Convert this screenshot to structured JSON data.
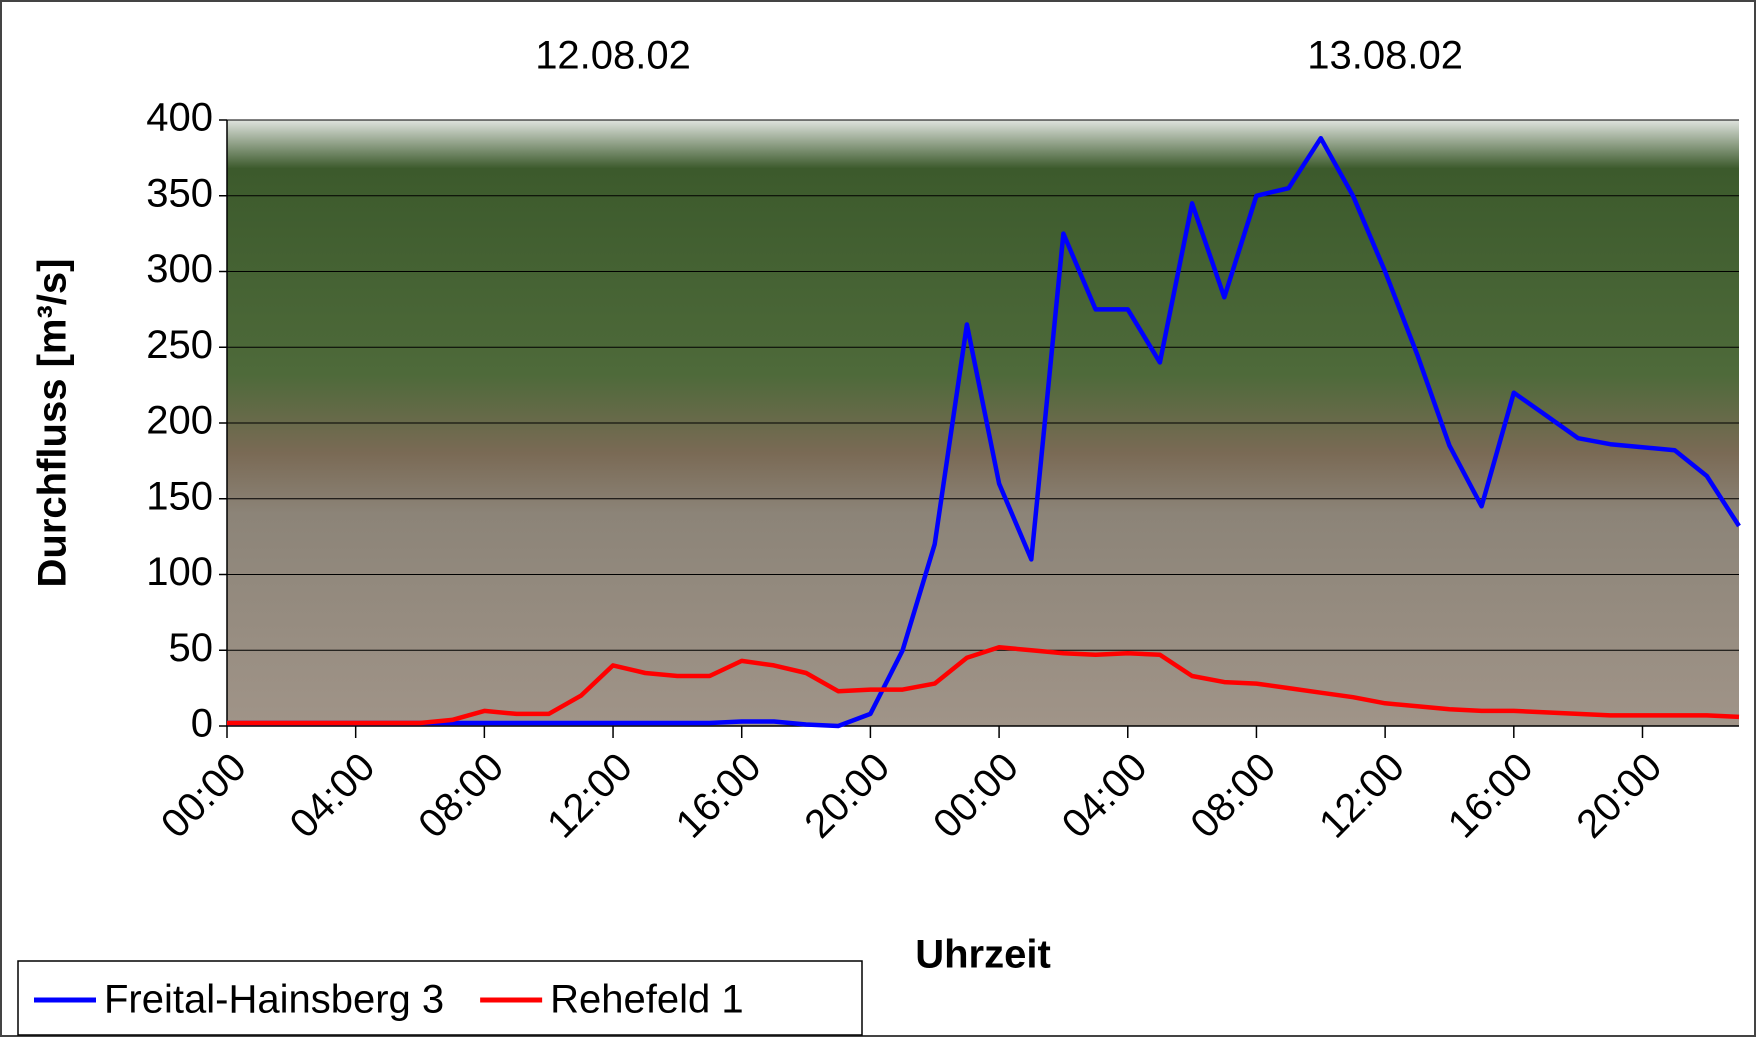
{
  "chart_data": {
    "type": "line",
    "annotations": [
      "12.08.02",
      "13.08.02"
    ],
    "x_label": "Uhrzeit",
    "y_label": "Durchfluss [m³/s]",
    "x": [
      0,
      1,
      2,
      3,
      4,
      5,
      6,
      7,
      8,
      9,
      10,
      11,
      12,
      13,
      14,
      15,
      16,
      17,
      18,
      19,
      20,
      21,
      22,
      23,
      24,
      25,
      26,
      27,
      28,
      29,
      30,
      31,
      32,
      33,
      34,
      35,
      36,
      37,
      38,
      39,
      40,
      41,
      42,
      43,
      44,
      45,
      46,
      47
    ],
    "series": [
      {
        "name": "Freital-Hainsberg 3",
        "color": "#0000ff",
        "values": [
          2,
          2,
          2,
          2,
          2,
          2,
          2,
          2,
          2,
          2,
          2,
          2,
          2,
          2,
          2,
          2,
          3,
          3,
          1,
          0,
          8,
          50,
          120,
          265,
          160,
          110,
          325,
          275,
          275,
          240,
          345,
          283,
          350,
          355,
          388,
          350,
          300,
          245,
          185,
          145,
          220,
          205,
          190,
          186,
          184,
          182,
          165,
          132
        ]
      },
      {
        "name": "Rehefeld 1",
        "color": "#ff0000",
        "values": [
          2,
          2,
          2,
          2,
          2,
          2,
          2,
          4,
          10,
          8,
          8,
          20,
          40,
          35,
          33,
          33,
          43,
          40,
          35,
          23,
          24,
          24,
          28,
          45,
          52,
          50,
          48,
          47,
          48,
          47,
          33,
          29,
          28,
          25,
          22,
          19,
          15,
          13,
          11,
          10,
          10,
          9,
          8,
          7,
          7,
          7,
          7,
          6
        ]
      }
    ],
    "xlim": [
      0,
      47
    ],
    "xticks": [
      {
        "value": 0,
        "label": "00:00"
      },
      {
        "value": 4,
        "label": "04:00"
      },
      {
        "value": 8,
        "label": "08:00"
      },
      {
        "value": 12,
        "label": "12:00"
      },
      {
        "value": 16,
        "label": "16:00"
      },
      {
        "value": 20,
        "label": "20:00"
      },
      {
        "value": 24,
        "label": "00:00"
      },
      {
        "value": 28,
        "label": "04:00"
      },
      {
        "value": 32,
        "label": "08:00"
      },
      {
        "value": 36,
        "label": "12:00"
      },
      {
        "value": 40,
        "label": "16:00"
      },
      {
        "value": 44,
        "label": "20:00"
      }
    ],
    "ylim": [
      0,
      400
    ],
    "yticks": [
      0,
      50,
      100,
      150,
      200,
      250,
      300,
      350,
      400
    ],
    "grid": true,
    "legend": "bottom-left"
  }
}
